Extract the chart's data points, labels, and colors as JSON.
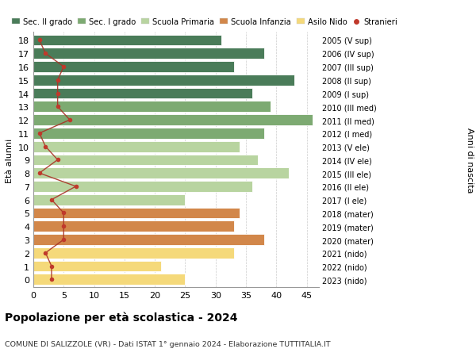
{
  "ages": [
    18,
    17,
    16,
    15,
    14,
    13,
    12,
    11,
    10,
    9,
    8,
    7,
    6,
    5,
    4,
    3,
    2,
    1,
    0
  ],
  "right_labels": [
    "2005 (V sup)",
    "2006 (IV sup)",
    "2007 (III sup)",
    "2008 (II sup)",
    "2009 (I sup)",
    "2010 (III med)",
    "2011 (II med)",
    "2012 (I med)",
    "2013 (V ele)",
    "2014 (IV ele)",
    "2015 (III ele)",
    "2016 (II ele)",
    "2017 (I ele)",
    "2018 (mater)",
    "2019 (mater)",
    "2020 (mater)",
    "2021 (nido)",
    "2022 (nido)",
    "2023 (nido)"
  ],
  "bar_values": [
    31,
    38,
    33,
    43,
    36,
    39,
    46,
    38,
    34,
    37,
    42,
    36,
    25,
    34,
    33,
    38,
    33,
    21,
    25
  ],
  "bar_colors": [
    "#4a7c59",
    "#4a7c59",
    "#4a7c59",
    "#4a7c59",
    "#4a7c59",
    "#7daa72",
    "#7daa72",
    "#7daa72",
    "#b8d4a0",
    "#b8d4a0",
    "#b8d4a0",
    "#b8d4a0",
    "#b8d4a0",
    "#d2874a",
    "#d2874a",
    "#d2874a",
    "#f5d97a",
    "#f5d97a",
    "#f5d97a"
  ],
  "stranieri_values": [
    1,
    2,
    5,
    4,
    4,
    4,
    6,
    1,
    2,
    4,
    1,
    7,
    3,
    5,
    5,
    5,
    2,
    3,
    3
  ],
  "title": "Popolazione per età scolastica - 2024",
  "subtitle": "COMUNE DI SALIZZOLE (VR) - Dati ISTAT 1° gennaio 2024 - Elaborazione TUTTITALIA.IT",
  "ylabel": "Età alunni",
  "right_ylabel": "Anni di nascita",
  "xlim": [
    0,
    47
  ],
  "xticks": [
    0,
    5,
    10,
    15,
    20,
    25,
    30,
    35,
    40,
    45
  ],
  "legend_labels": [
    "Sec. II grado",
    "Sec. I grado",
    "Scuola Primaria",
    "Scuola Infanzia",
    "Asilo Nido",
    "Stranieri"
  ],
  "legend_colors": [
    "#4a7c59",
    "#7daa72",
    "#b8d4a0",
    "#d2874a",
    "#f5d97a",
    "#c0392b"
  ],
  "stranieri_line_color": "#a93226",
  "stranieri_dot_color": "#c0392b",
  "bg_color": "#ffffff",
  "bar_height": 0.82,
  "grid_color": "#cccccc"
}
